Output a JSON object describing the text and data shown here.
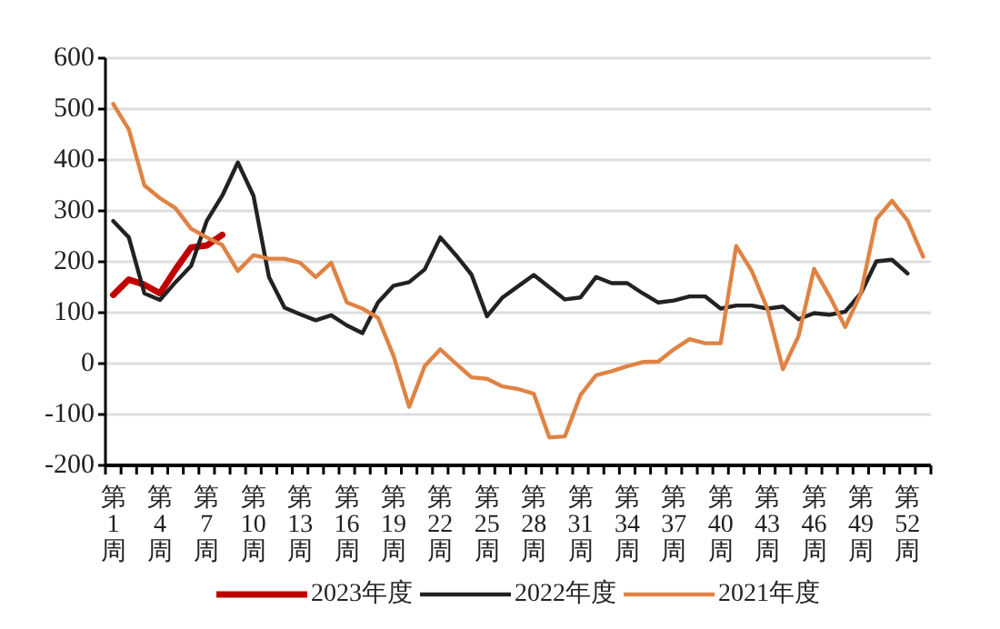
{
  "chart_data": {
    "type": "line",
    "categories": [
      "第1周",
      null,
      null,
      "第4周",
      null,
      null,
      "第7周",
      null,
      null,
      "第10周",
      null,
      null,
      "第13周",
      null,
      null,
      "第16周",
      null,
      null,
      "第19周",
      null,
      null,
      "第22周",
      null,
      null,
      "第25周",
      null,
      null,
      "第28周",
      null,
      null,
      "第31周",
      null,
      null,
      "第34周",
      null,
      null,
      "第37周",
      null,
      null,
      "第40周",
      null,
      null,
      "第43周",
      null,
      null,
      "第46周",
      null,
      null,
      "第49周",
      null,
      null,
      "第52周",
      null
    ],
    "series": [
      {
        "name": "2023年度",
        "color": "#c00000",
        "values": [
          135,
          165,
          155,
          138,
          185,
          228,
          232,
          253,
          null,
          null,
          null,
          null,
          null,
          null,
          null,
          null,
          null,
          null,
          null,
          null,
          null,
          null,
          null,
          null,
          null,
          null,
          null,
          null,
          null,
          null,
          null,
          null,
          null,
          null,
          null,
          null,
          null,
          null,
          null,
          null,
          null,
          null,
          null,
          null,
          null,
          null,
          null,
          null,
          null,
          null,
          null,
          null,
          null
        ]
      },
      {
        "name": "2022年度",
        "color": "#222222",
        "values": [
          280,
          248,
          138,
          125,
          160,
          192,
          280,
          330,
          395,
          330,
          170,
          110,
          97,
          85,
          95,
          75,
          60,
          120,
          153,
          160,
          185,
          248,
          213,
          175,
          93,
          130,
          152,
          174,
          150,
          126,
          130,
          170,
          158,
          158,
          138,
          120,
          124,
          132,
          132,
          108,
          114,
          114,
          108,
          112,
          87,
          99,
          96,
          102,
          138,
          201,
          204,
          177,
          null
        ]
      },
      {
        "name": "2021年度",
        "color": "#df8344",
        "values": [
          510,
          460,
          350,
          325,
          305,
          265,
          248,
          233,
          182,
          213,
          206,
          206,
          198,
          170,
          198,
          120,
          108,
          90,
          15,
          -85,
          -5,
          28,
          0,
          -27,
          -30,
          -45,
          -50,
          -59,
          -145,
          -143,
          -62,
          -23,
          -15,
          -5,
          3,
          4,
          28,
          48,
          40,
          40,
          231,
          182,
          108,
          -11,
          54,
          186,
          132,
          72,
          138,
          284,
          320,
          281,
          210
        ]
      }
    ],
    "ylim": [
      -200,
      600
    ],
    "yticks": [
      -200,
      -100,
      0,
      100,
      200,
      300,
      400,
      500,
      600
    ],
    "grid": "y",
    "legend": "bottom"
  }
}
